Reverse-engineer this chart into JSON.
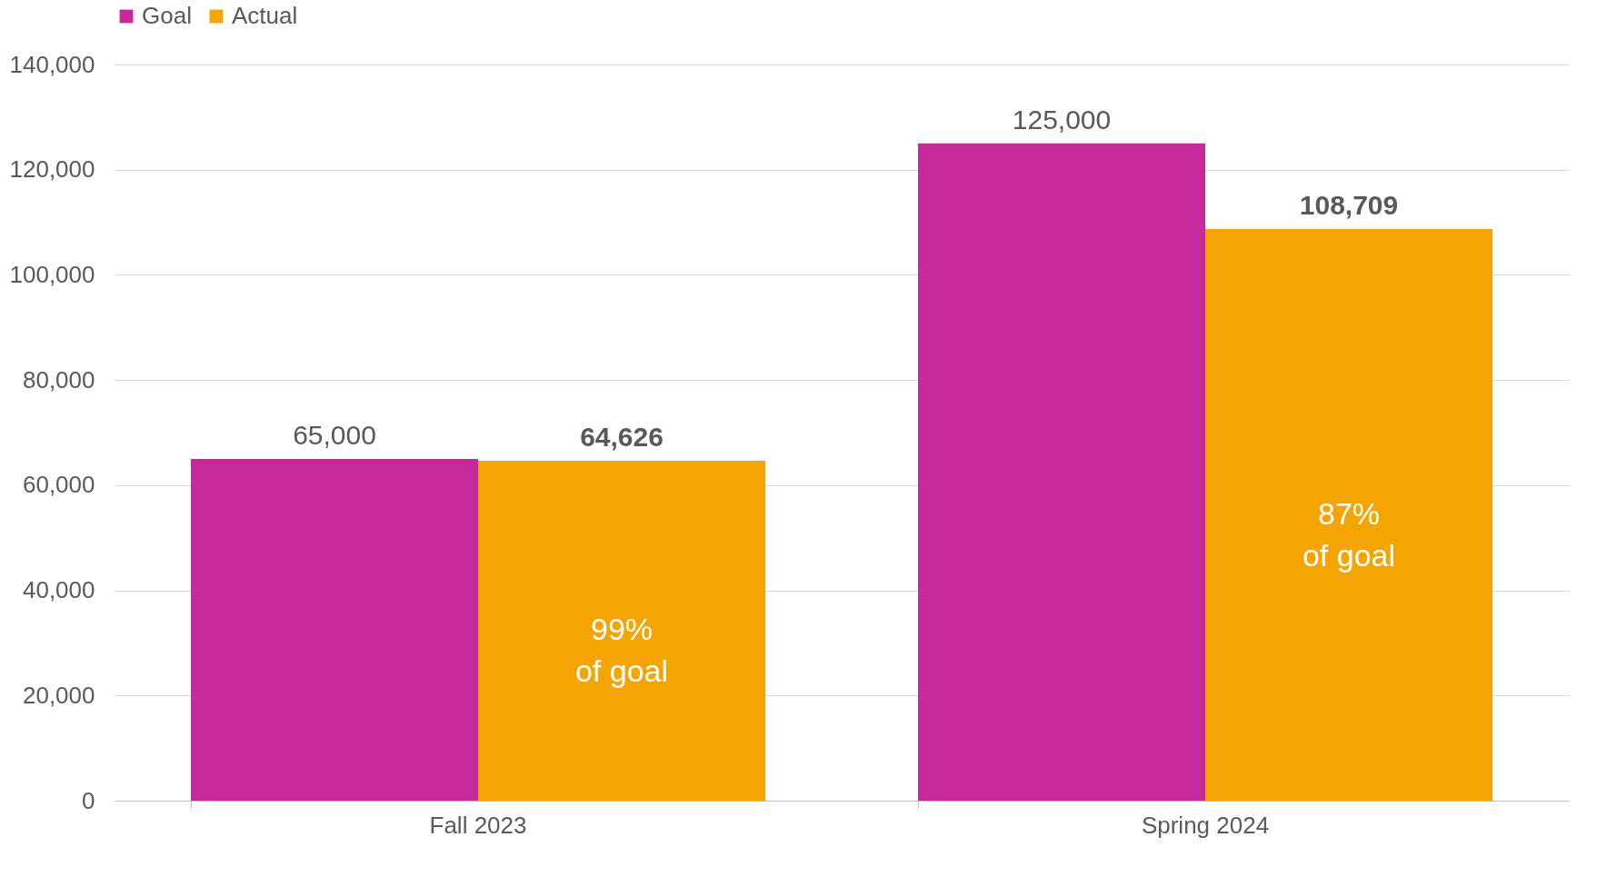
{
  "chart_data": {
    "type": "bar",
    "categories": [
      "Fall 2023",
      "Spring 2024"
    ],
    "series": [
      {
        "name": "Goal",
        "color": "#c5299b",
        "values": [
          65000,
          125000
        ],
        "value_labels": [
          "65,000",
          "125,000"
        ]
      },
      {
        "name": "Actual",
        "color": "#f5a503",
        "values": [
          64626,
          108709
        ],
        "value_labels": [
          "64,626",
          "108,709"
        ]
      }
    ],
    "ylim": [
      0,
      140000
    ],
    "yticks": [
      0,
      {
        "value": 20000,
        "label": "20,000"
      },
      {
        "value": 40000,
        "label": "40,000"
      },
      {
        "value": 60000,
        "label": "60,000"
      },
      {
        "value": 80000,
        "label": "80,000"
      },
      {
        "value": 100000,
        "label": "100,000"
      },
      {
        "value": 120000,
        "label": "120,000"
      },
      {
        "value": 140000,
        "label": "140,000"
      }
    ],
    "grid": "y",
    "legend": "top left",
    "annotations": [
      "99% of goal",
      "87% of goal"
    ]
  }
}
